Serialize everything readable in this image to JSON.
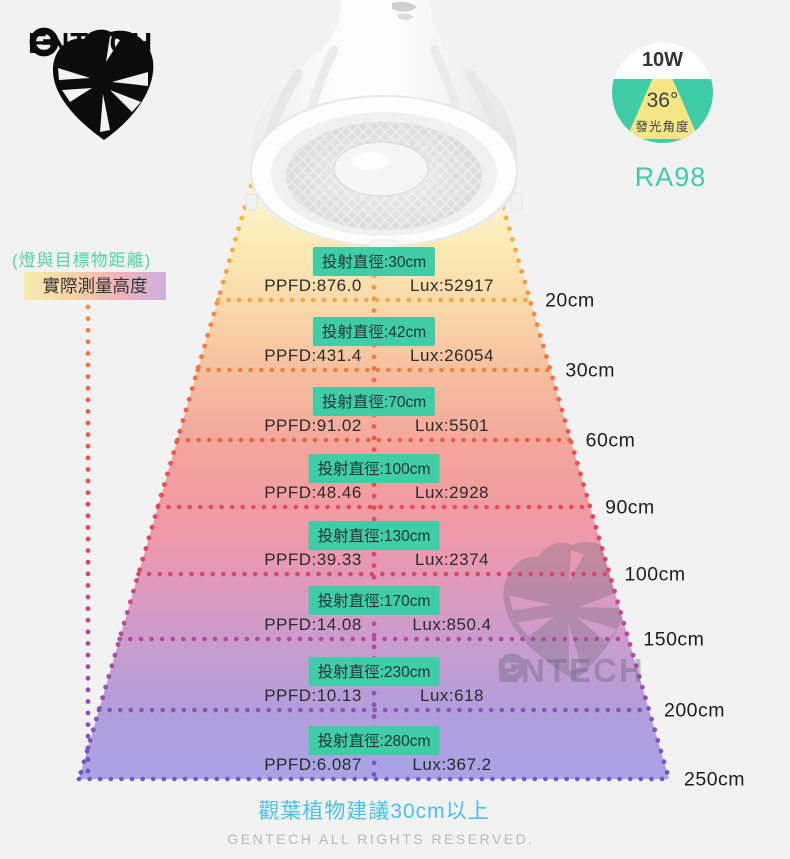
{
  "brand": {
    "name": "GENTECH",
    "wordmark_rest": "ENTECH"
  },
  "spec_badge": {
    "wattage": "10W",
    "beam_angle": "36°",
    "beam_angle_caption": "發光角度",
    "cri": "RA98"
  },
  "legend": {
    "distance_note": "(燈與目標物距離)",
    "height_chip": "實際測量高度"
  },
  "rows": [
    {
      "diameter_label": "投射直徑:30cm",
      "ppfd": "PPFD:876.0",
      "lux": "Lux:52917",
      "distance": "20cm",
      "line_color": "#f0a843"
    },
    {
      "diameter_label": "投射直徑:42cm",
      "ppfd": "PPFD:431.4",
      "lux": "Lux:26054",
      "distance": "30cm",
      "line_color": "#ef8040"
    },
    {
      "diameter_label": "投射直徑:70cm",
      "ppfd": "PPFD:91.02",
      "lux": "Lux:5501",
      "distance": "60cm",
      "line_color": "#ed5f4b"
    },
    {
      "diameter_label": "投射直徑:100cm",
      "ppfd": "PPFD:48.46",
      "lux": "Lux:2928",
      "distance": "90cm",
      "line_color": "#e94d52"
    },
    {
      "diameter_label": "投射直徑:130cm",
      "ppfd": "PPFD:39.33",
      "lux": "Lux:2374",
      "distance": "100cm",
      "line_color": "#d94767"
    },
    {
      "diameter_label": "投射直徑:170cm",
      "ppfd": "PPFD:14.08",
      "lux": "Lux:850.4",
      "distance": "150cm",
      "line_color": "#b04b9b"
    },
    {
      "diameter_label": "投射直徑:230cm",
      "ppfd": "PPFD:10.13",
      "lux": "Lux:618",
      "distance": "200cm",
      "line_color": "#8e52b5"
    },
    {
      "diameter_label": "投射直徑:280cm",
      "ppfd": "PPFD:6.087",
      "lux": "Lux:367.2",
      "distance": "250cm",
      "line_color": "#7459c8"
    }
  ],
  "footer": {
    "advice": "觀葉植物建議30cm以上",
    "copyright": "GENTECH ALL RIGHTS RESERVED."
  },
  "colors": {
    "accent_teal": "#3ecda6",
    "cri_teal": "#3fcbad",
    "advice_blue": "#4ac0ea",
    "beam_yellow": "#f6e584"
  }
}
